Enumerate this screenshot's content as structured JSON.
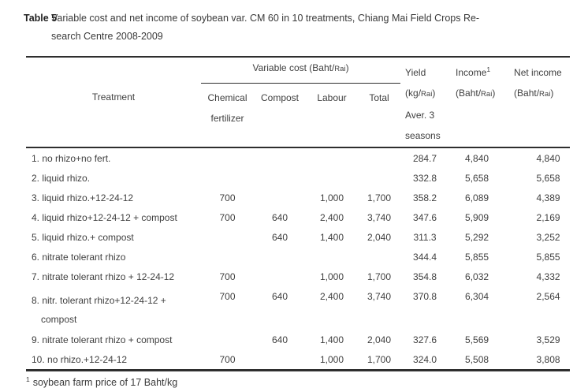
{
  "caption": {
    "label": "Table 5",
    "line1": "Variable cost and net income of soybean var. CM 60 in 10 treatments, Chiang Mai Field Crops Re-",
    "line2": "search Centre 2008-2009"
  },
  "header": {
    "treatment": "Treatment",
    "group": {
      "pre": "Variable cost (Baht/",
      "rai": "Rai",
      "post": ")"
    },
    "sub": {
      "chemical_l1": "Chemical",
      "chemical_l2": "fertilizer",
      "compost": "Compost",
      "labour": "Labour",
      "total": "Total"
    },
    "yield": {
      "l1": "Yield",
      "l2_pre": "(kg/",
      "rai": "Rai",
      "l2_post": ")",
      "l3": "Aver. 3",
      "l4": "seasons"
    },
    "income": {
      "l1": "Income",
      "sup": "1",
      "l2_pre": "(Baht/",
      "rai": "Rai",
      "l2_post": ")"
    },
    "net": {
      "l1": "Net income",
      "l2_pre": "(Baht/",
      "rai": "Rai",
      "l2_post": ")"
    }
  },
  "rows": [
    {
      "treatment": "1. no rhizo+no fert.",
      "chem": "",
      "compost": "",
      "labour": "",
      "total": "",
      "yield": "284.7",
      "income": "4,840",
      "net": "4,840"
    },
    {
      "treatment": "2. liquid rhizo.",
      "chem": "",
      "compost": "",
      "labour": "",
      "total": "",
      "yield": "332.8",
      "income": "5,658",
      "net": "5,658"
    },
    {
      "treatment": "3. liquid rhizo.+12-24-12",
      "chem": "700",
      "compost": "",
      "labour": "1,000",
      "total": "1,700",
      "yield": "358.2",
      "income": "6,089",
      "net": "4,389"
    },
    {
      "treatment": "4. liquid rhizo+12-24-12 + compost",
      "chem": "700",
      "compost": "640",
      "labour": "2,400",
      "total": "3,740",
      "yield": "347.6",
      "income": "5,909",
      "net": "2,169"
    },
    {
      "treatment": "5. liquid rhizo.+ compost",
      "chem": "",
      "compost": "640",
      "labour": "1,400",
      "total": "2,040",
      "yield": "311.3",
      "income": "5,292",
      "net": "3,252"
    },
    {
      "treatment": "6. nitrate tolerant rhizo",
      "chem": "",
      "compost": "",
      "labour": "",
      "total": "",
      "yield": "344.4",
      "income": "5,855",
      "net": "5,855"
    },
    {
      "treatment": "7. nitrate tolerant rhizo + 12-24-12",
      "chem": "700",
      "compost": "",
      "labour": "1,000",
      "total": "1,700",
      "yield": "354.8",
      "income": "6,032",
      "net": "4,332"
    },
    {
      "treatment": "8. nitr. tolerant rhizo+12-24-12 +",
      "treatment_line2": "compost",
      "chem": "700",
      "compost": "640",
      "labour": "2,400",
      "total": "3,740",
      "yield": "370.8",
      "income": "6,304",
      "net": "2,564"
    },
    {
      "treatment": "9. nitrate tolerant rhizo + compost",
      "chem": "",
      "compost": "640",
      "labour": "1,400",
      "total": "2,040",
      "yield": "327.6",
      "income": "5,569",
      "net": "3,529"
    },
    {
      "treatment": "10. no rhizo.+12-24-12",
      "chem": "700",
      "compost": "",
      "labour": "1,000",
      "total": "1,700",
      "yield": "324.0",
      "income": "5,508",
      "net": "3,808"
    }
  ],
  "footnote": {
    "sup": "1",
    "text": "soybean farm price of 17 Baht/kg"
  }
}
